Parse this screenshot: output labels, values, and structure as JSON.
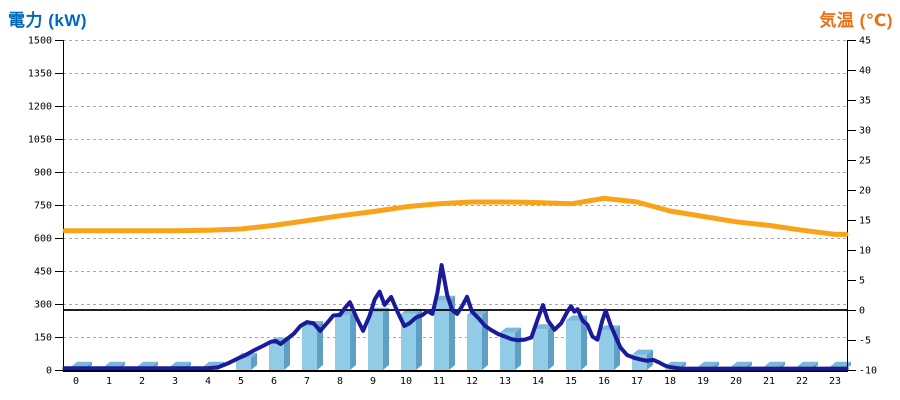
{
  "titles": {
    "left": "電力 (kW)",
    "right": "気温 (℃)"
  },
  "colors": {
    "left_title": "#0068B7",
    "right_title": "#ED7014",
    "bar_face": "#92CBE6",
    "bar_side": "#5F9FC3",
    "bar_top": "#7CB9D9",
    "power_line": "#1A1A9B",
    "temp_line": "#F9A31B",
    "grid": "#AAAAAA",
    "axis": "#000000",
    "zero_line": "#000000"
  },
  "chart_data": {
    "type": "bar",
    "subtype": "dual-axis bar + line combo, 24-hour profile",
    "title": "",
    "xlabel": "",
    "x_ticks": [
      0,
      1,
      2,
      3,
      4,
      5,
      6,
      7,
      8,
      9,
      10,
      11,
      12,
      13,
      14,
      15,
      16,
      17,
      18,
      19,
      20,
      21,
      22,
      23
    ],
    "left_axis": {
      "label": "電力 (kW)",
      "min": 0,
      "max": 1500,
      "tick_step": 150,
      "ticks": [
        0,
        150,
        300,
        450,
        600,
        750,
        900,
        1050,
        1200,
        1350,
        1500
      ]
    },
    "right_axis": {
      "label": "気温 (℃)",
      "min": -10,
      "max": 45,
      "tick_step": 5,
      "ticks": [
        -10,
        -5,
        0,
        5,
        10,
        15,
        20,
        25,
        30,
        35,
        40,
        45
      ]
    },
    "gridlines": "dashed horizontal at each left-axis tick",
    "reference_line": {
      "axis": "right",
      "value": 0,
      "style": "solid black"
    },
    "legend_position": "none",
    "series": [
      {
        "name": "power-bars",
        "type": "bar",
        "axis": "left",
        "style": "3d-bars",
        "categories": [
          0,
          1,
          2,
          3,
          4,
          5,
          6,
          7,
          8,
          9,
          10,
          11,
          12,
          13,
          14,
          15,
          16,
          17,
          18,
          19,
          20,
          21,
          22,
          23
        ],
        "values": [
          15,
          15,
          15,
          15,
          15,
          55,
          125,
          200,
          250,
          260,
          255,
          315,
          250,
          170,
          185,
          225,
          180,
          70,
          15,
          15,
          15,
          15,
          15,
          15
        ]
      },
      {
        "name": "power-line",
        "type": "line",
        "axis": "left",
        "points": [
          [
            -0.35,
            8
          ],
          [
            0,
            8
          ],
          [
            1,
            8
          ],
          [
            2,
            8
          ],
          [
            3,
            8
          ],
          [
            4,
            8
          ],
          [
            4.3,
            12
          ],
          [
            4.6,
            30
          ],
          [
            4.9,
            52
          ],
          [
            5.1,
            65
          ],
          [
            5.4,
            90
          ],
          [
            5.7,
            112
          ],
          [
            5.9,
            128
          ],
          [
            6.05,
            132
          ],
          [
            6.2,
            118
          ],
          [
            6.4,
            142
          ],
          [
            6.6,
            165
          ],
          [
            6.8,
            200
          ],
          [
            7.0,
            218
          ],
          [
            7.2,
            212
          ],
          [
            7.4,
            178
          ],
          [
            7.6,
            212
          ],
          [
            7.8,
            248
          ],
          [
            8.0,
            250
          ],
          [
            8.15,
            282
          ],
          [
            8.3,
            308
          ],
          [
            8.5,
            238
          ],
          [
            8.7,
            178
          ],
          [
            8.9,
            248
          ],
          [
            9.05,
            320
          ],
          [
            9.2,
            356
          ],
          [
            9.35,
            296
          ],
          [
            9.55,
            332
          ],
          [
            9.75,
            262
          ],
          [
            9.95,
            200
          ],
          [
            10.1,
            212
          ],
          [
            10.3,
            238
          ],
          [
            10.5,
            250
          ],
          [
            10.65,
            268
          ],
          [
            10.8,
            255
          ],
          [
            10.95,
            350
          ],
          [
            11.08,
            477
          ],
          [
            11.25,
            340
          ],
          [
            11.4,
            272
          ],
          [
            11.55,
            255
          ],
          [
            11.7,
            290
          ],
          [
            11.85,
            333
          ],
          [
            12.0,
            265
          ],
          [
            12.2,
            235
          ],
          [
            12.4,
            200
          ],
          [
            12.6,
            180
          ],
          [
            12.8,
            163
          ],
          [
            13.0,
            152
          ],
          [
            13.2,
            140
          ],
          [
            13.4,
            135
          ],
          [
            13.6,
            138
          ],
          [
            13.8,
            148
          ],
          [
            14.0,
            235
          ],
          [
            14.15,
            295
          ],
          [
            14.3,
            225
          ],
          [
            14.5,
            183
          ],
          [
            14.7,
            212
          ],
          [
            14.9,
            268
          ],
          [
            15.0,
            290
          ],
          [
            15.1,
            265
          ],
          [
            15.2,
            276
          ],
          [
            15.35,
            225
          ],
          [
            15.5,
            205
          ],
          [
            15.65,
            152
          ],
          [
            15.8,
            138
          ],
          [
            15.95,
            225
          ],
          [
            16.05,
            270
          ],
          [
            16.2,
            205
          ],
          [
            16.35,
            152
          ],
          [
            16.5,
            102
          ],
          [
            16.7,
            68
          ],
          [
            16.9,
            56
          ],
          [
            17.1,
            48
          ],
          [
            17.3,
            42
          ],
          [
            17.5,
            46
          ],
          [
            17.7,
            32
          ],
          [
            17.85,
            20
          ],
          [
            18.0,
            13
          ],
          [
            18.3,
            7
          ],
          [
            19,
            6
          ],
          [
            20,
            6
          ],
          [
            21,
            6
          ],
          [
            22,
            6
          ],
          [
            23,
            6
          ],
          [
            23.35,
            6
          ]
        ]
      },
      {
        "name": "temperature",
        "type": "line",
        "axis": "right",
        "categories": [
          0,
          1,
          2,
          3,
          4,
          5,
          6,
          7,
          8,
          9,
          10,
          11,
          12,
          13,
          14,
          15,
          16,
          17,
          18,
          19,
          20,
          21,
          22,
          23
        ],
        "values": [
          13.2,
          13.2,
          13.2,
          13.2,
          13.3,
          13.5,
          14.1,
          14.9,
          15.7,
          16.4,
          17.2,
          17.7,
          18.0,
          18.0,
          17.9,
          17.7,
          18.6,
          18.0,
          16.5,
          15.6,
          14.7,
          14.1,
          13.3,
          12.6
        ]
      }
    ]
  }
}
